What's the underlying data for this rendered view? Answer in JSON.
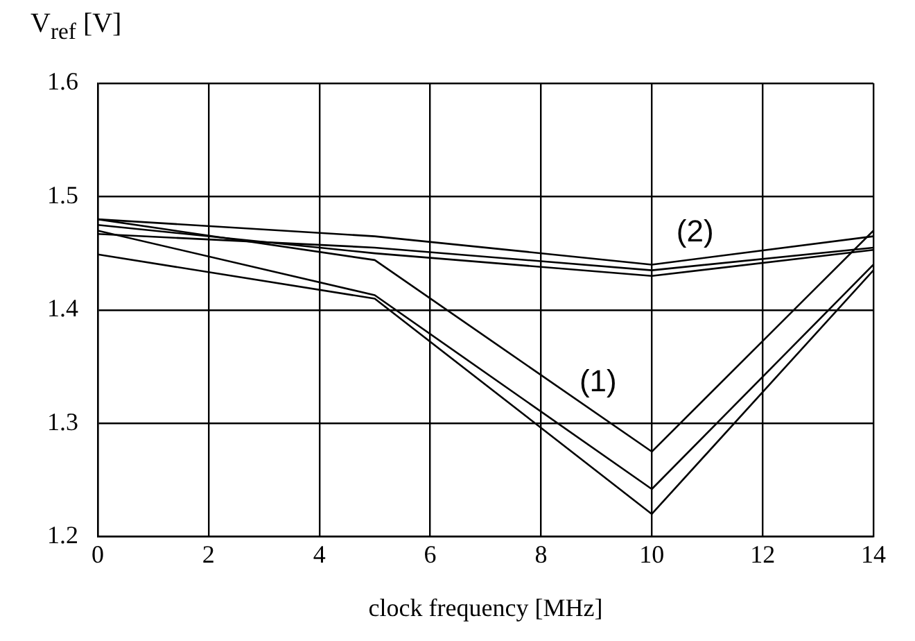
{
  "chart_data": {
    "type": "line",
    "xlabel": "clock frequency [MHz]",
    "ylabel": "V$_{ref}$ [V]",
    "xlim": [
      0,
      14
    ],
    "xticks": [
      0,
      2,
      4,
      6,
      8,
      10,
      12,
      14
    ],
    "ylim": [
      1.2,
      1.6
    ],
    "yticks": [
      1.2,
      1.3,
      1.4,
      1.5,
      1.6
    ],
    "grid": true,
    "legend": false,
    "marker": "none",
    "line_style": "solid",
    "x": [
      0,
      5,
      10,
      14
    ],
    "series": [
      {
        "color": "#000000",
        "values": [
          1.48,
          1.444,
          1.275,
          1.47
        ]
      },
      {
        "color": "#000000",
        "values": [
          1.47,
          1.413,
          1.242,
          1.44
        ]
      },
      {
        "color": "#000000",
        "values": [
          1.449,
          1.41,
          1.22,
          1.435
        ]
      },
      {
        "color": "#000000",
        "values": [
          1.48,
          1.465,
          1.44,
          1.465
        ]
      },
      {
        "color": "#000000",
        "values": [
          1.475,
          1.45,
          1.43,
          1.453
        ]
      },
      {
        "color": "#000000",
        "values": [
          1.467,
          1.455,
          1.435,
          1.455
        ]
      }
    ],
    "annotations": [
      "(1)",
      "(2)"
    ]
  }
}
